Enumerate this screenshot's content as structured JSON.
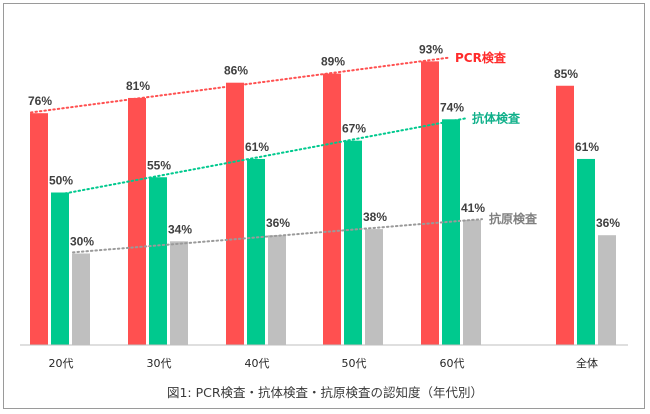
{
  "chart_data": {
    "type": "bar",
    "title": "",
    "caption": "図1: PCR検査・抗体検査・抗原検査の認知度（年代別）",
    "categories": [
      "20代",
      "30代",
      "40代",
      "50代",
      "60代",
      "全体"
    ],
    "series": [
      {
        "name": "PCR検査",
        "color": "#ff5050",
        "labelColor": "#ff2b2b",
        "values": [
          76,
          81,
          86,
          89,
          93,
          85
        ]
      },
      {
        "name": "抗体検査",
        "color": "#00c98e",
        "labelColor": "#10b08a",
        "values": [
          50,
          55,
          61,
          67,
          74,
          61
        ]
      },
      {
        "name": "抗原検査",
        "color": "#bfbfbf",
        "labelColor": "#7f7f7f",
        "values": [
          30,
          34,
          36,
          38,
          41,
          36
        ]
      }
    ],
    "value_suffix": "%",
    "ylim": [
      0,
      100
    ],
    "trendlines": "dotted lines across 20代–60代 for each series",
    "legend": "inline labels at end of trendlines",
    "grid": false
  }
}
